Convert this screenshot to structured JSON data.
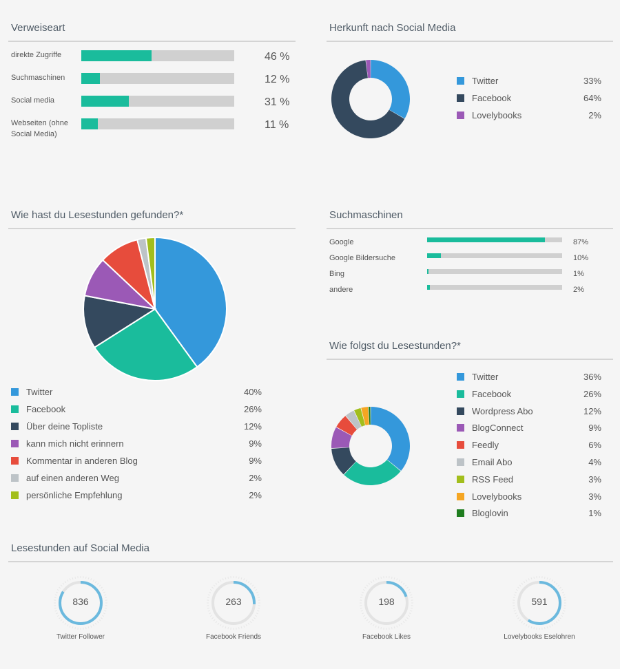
{
  "colors": {
    "blue": "#3498db",
    "teal": "#1abc9c",
    "navy": "#34495e",
    "purple": "#9b59b6",
    "red": "#e74c3c",
    "silver": "#bdc3c7",
    "lime": "#a2be1c",
    "orange": "#f5a623",
    "green": "#1e7d1e",
    "ring": "#6bb9de",
    "ring_track": "#e3e3e3"
  },
  "chart_data": [
    {
      "type": "bar",
      "title": "Verweiseart",
      "orientation": "horizontal",
      "categories": [
        "direkte Zugriffe",
        "Suchmaschinen",
        "Social media",
        "Webseiten (ohne Social Media)"
      ],
      "values": [
        46,
        12,
        31,
        11
      ],
      "value_labels": [
        "46 %",
        "12 %",
        "31 %",
        "11 %"
      ],
      "xlim": [
        0,
        100
      ]
    },
    {
      "type": "pie",
      "variant": "donut",
      "title": "Herkunft nach Social Media",
      "categories": [
        "Twitter",
        "Facebook",
        "Lovelybooks"
      ],
      "values": [
        33,
        64,
        2
      ],
      "value_labels": [
        "33%",
        "64%",
        "2%"
      ],
      "colors": [
        "#3498db",
        "#34495e",
        "#9b59b6"
      ],
      "legend": "right"
    },
    {
      "type": "pie",
      "title": "Wie hast du Lesestunden gefunden?*",
      "categories": [
        "Twitter",
        "Facebook",
        "Über deine Topliste",
        "kann mich nicht erinnern",
        "Kommentar in anderen Blog",
        "auf einen anderen Weg",
        "persönliche Empfehlung"
      ],
      "values": [
        40,
        26,
        12,
        9,
        9,
        2,
        2
      ],
      "value_labels": [
        "40%",
        "26%",
        "12%",
        "9%",
        "9%",
        "2%",
        "2%"
      ],
      "colors": [
        "#3498db",
        "#1abc9c",
        "#34495e",
        "#9b59b6",
        "#e74c3c",
        "#bdc3c7",
        "#a2be1c"
      ],
      "legend": "bottom"
    },
    {
      "type": "bar",
      "title": "Suchmaschinen",
      "orientation": "horizontal",
      "categories": [
        "Google",
        "Google Bildersuche",
        "Bing",
        "andere"
      ],
      "values": [
        87,
        10,
        1,
        2
      ],
      "value_labels": [
        "87%",
        "10%",
        "1%",
        "2%"
      ],
      "xlim": [
        0,
        100
      ]
    },
    {
      "type": "pie",
      "variant": "donut",
      "title": "Wie folgst du Lesestunden?*",
      "categories": [
        "Twitter",
        "Facebook",
        "Wordpress Abo",
        "BlogConnect",
        "Feedly",
        "Email Abo",
        "RSS Feed",
        "Lovelybooks",
        "Bloglovin"
      ],
      "values": [
        36,
        26,
        12,
        9,
        6,
        4,
        3,
        3,
        1
      ],
      "value_labels": [
        "36%",
        "26%",
        "12%",
        "9%",
        "6%",
        "4%",
        "3%",
        "3%",
        "1%"
      ],
      "colors": [
        "#3498db",
        "#1abc9c",
        "#34495e",
        "#9b59b6",
        "#e74c3c",
        "#bdc3c7",
        "#a2be1c",
        "#f5a623",
        "#1e7d1e"
      ],
      "legend": "right"
    }
  ],
  "social": {
    "title": "Lesestunden auf Social Media",
    "stats": [
      {
        "value": "836",
        "caption": "Twitter Follower",
        "fill": 0.84
      },
      {
        "value": "263",
        "caption": "Facebook Friends",
        "fill": 0.26
      },
      {
        "value": "198",
        "caption": "Facebook Likes",
        "fill": 0.2
      },
      {
        "value": "591",
        "caption": "Lovelybooks Eselohren",
        "fill": 0.59
      }
    ]
  }
}
